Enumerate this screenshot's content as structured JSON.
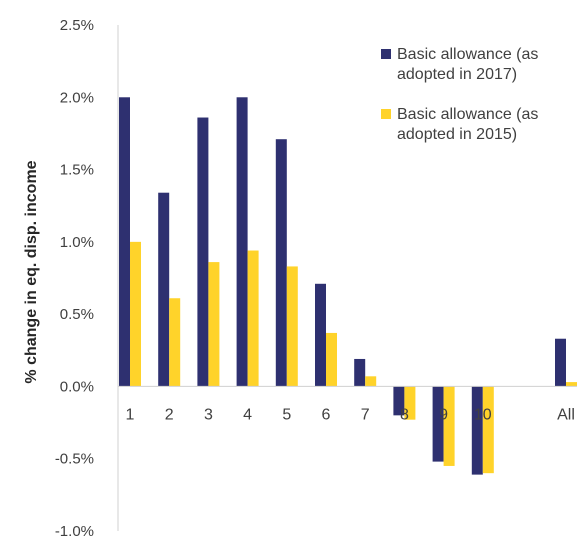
{
  "chart_data": {
    "type": "bar",
    "categories": [
      "1",
      "2",
      "3",
      "4",
      "5",
      "6",
      "7",
      "8",
      "9",
      "10",
      "All"
    ],
    "series": [
      {
        "name": "Basic allowance (as adopted in 2017)",
        "legend_lines": [
          "Basic allowance (as",
          "adopted in 2017)"
        ],
        "color": "#2e3070",
        "values": [
          2.0,
          1.34,
          1.86,
          2.0,
          1.71,
          0.71,
          0.19,
          -0.2,
          -0.52,
          -0.61,
          0.33
        ]
      },
      {
        "name": "Basic allowance (as adopted in 2015)",
        "legend_lines": [
          "Basic allowance (as",
          "adopted in 2015)"
        ],
        "color": "#ffd32a",
        "values": [
          1.0,
          0.61,
          0.86,
          0.94,
          0.83,
          0.37,
          0.07,
          -0.23,
          -0.55,
          -0.6,
          0.03
        ]
      }
    ],
    "ylabel": "% change in eq. disp. income",
    "ylim": [
      -1.0,
      2.5
    ],
    "yticks": [
      "-1.0%",
      "-0.5%",
      "0.0%",
      "0.5%",
      "1.0%",
      "1.5%",
      "2.0%",
      "2.5%"
    ],
    "ytick_values": [
      -1.0,
      -0.5,
      0.0,
      0.5,
      1.0,
      1.5,
      2.0,
      2.5
    ],
    "grid": false,
    "legend_position": "top-right"
  }
}
